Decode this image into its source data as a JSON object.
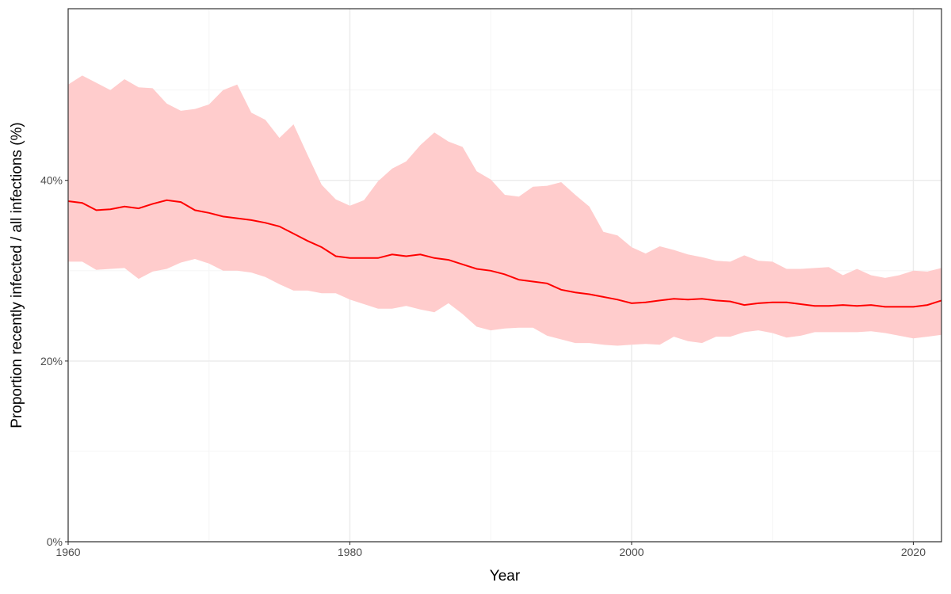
{
  "chart_data": {
    "type": "area",
    "title": "",
    "xlabel": "Year",
    "ylabel": "Proportion recently infected / all infections (%)",
    "xlim": [
      1960,
      2022
    ],
    "ylim": [
      0,
      59
    ],
    "x_ticks": [
      1960,
      1980,
      2000,
      2020
    ],
    "x_tick_labels": [
      "1960",
      "1980",
      "2000",
      "2020"
    ],
    "y_ticks": [
      0,
      20,
      40
    ],
    "y_tick_labels": [
      "0%",
      "20%",
      "40%"
    ],
    "grid": true,
    "legend": "none",
    "colors": {
      "line": "#ff0000",
      "band": "#ffcccc",
      "grid_major": "#ebebeb",
      "grid_minor": "#f5f5f5",
      "border": "#333333"
    },
    "x": [
      1960,
      1961,
      1962,
      1963,
      1964,
      1965,
      1966,
      1967,
      1968,
      1969,
      1970,
      1971,
      1972,
      1973,
      1974,
      1975,
      1976,
      1977,
      1978,
      1979,
      1980,
      1981,
      1982,
      1983,
      1984,
      1985,
      1986,
      1987,
      1988,
      1989,
      1990,
      1991,
      1992,
      1993,
      1994,
      1995,
      1996,
      1997,
      1998,
      1999,
      2000,
      2001,
      2002,
      2003,
      2004,
      2005,
      2006,
      2007,
      2008,
      2009,
      2010,
      2011,
      2012,
      2013,
      2014,
      2015,
      2016,
      2017,
      2018,
      2019,
      2020,
      2021,
      2022
    ],
    "series": [
      {
        "values": [
          37.7,
          37.5,
          36.7,
          36.8,
          37.1,
          36.9,
          37.4,
          37.8,
          37.6,
          36.7,
          36.4,
          36.0,
          35.8,
          35.6,
          35.3,
          34.9,
          34.1,
          33.3,
          32.6,
          31.6,
          31.4,
          31.4,
          31.4,
          31.8,
          31.6,
          31.8,
          31.4,
          31.2,
          30.7,
          30.2,
          30.0,
          29.6,
          29.0,
          28.8,
          28.6,
          27.9,
          27.6,
          27.4,
          27.1,
          26.8,
          26.4,
          26.5,
          26.7,
          26.9,
          26.8,
          26.9,
          26.7,
          26.6,
          26.2,
          26.4,
          26.5,
          26.5,
          26.3,
          26.1,
          26.1,
          26.2,
          26.1,
          26.2,
          26.0,
          26.0,
          26.0,
          26.2,
          26.7
        ],
        "lower": [
          31.0,
          31.0,
          30.1,
          30.2,
          30.3,
          29.1,
          29.9,
          30.2,
          30.9,
          31.3,
          30.8,
          30.0,
          30.0,
          29.8,
          29.3,
          28.5,
          27.8,
          27.8,
          27.5,
          27.5,
          26.8,
          26.3,
          25.8,
          25.8,
          26.1,
          25.7,
          25.4,
          26.4,
          25.2,
          23.8,
          23.4,
          23.6,
          23.7,
          23.7,
          22.8,
          22.4,
          22.0,
          22.0,
          21.8,
          21.7,
          21.8,
          21.9,
          21.8,
          22.7,
          22.2,
          22.0,
          22.7,
          22.7,
          23.2,
          23.4,
          23.1,
          22.6,
          22.8,
          23.2,
          23.2,
          23.2,
          23.2,
          23.3,
          23.1,
          22.8,
          22.5,
          22.7,
          22.9
        ],
        "upper": [
          50.6,
          51.6,
          50.8,
          50.0,
          51.2,
          50.3,
          50.2,
          48.5,
          47.7,
          47.9,
          48.4,
          50.0,
          50.6,
          47.5,
          46.7,
          44.7,
          46.2,
          42.8,
          39.5,
          37.9,
          37.2,
          37.8,
          39.9,
          41.3,
          42.1,
          43.9,
          45.3,
          44.3,
          43.7,
          41.0,
          40.1,
          38.4,
          38.2,
          39.3,
          39.4,
          39.8,
          38.4,
          37.1,
          34.3,
          33.9,
          32.6,
          31.9,
          32.7,
          32.3,
          31.8,
          31.5,
          31.1,
          31.0,
          31.7,
          31.1,
          31.0,
          30.2,
          30.2,
          30.3,
          30.4,
          29.5,
          30.2,
          29.5,
          29.2,
          29.5,
          30.0,
          29.9,
          30.3
        ]
      }
    ]
  }
}
